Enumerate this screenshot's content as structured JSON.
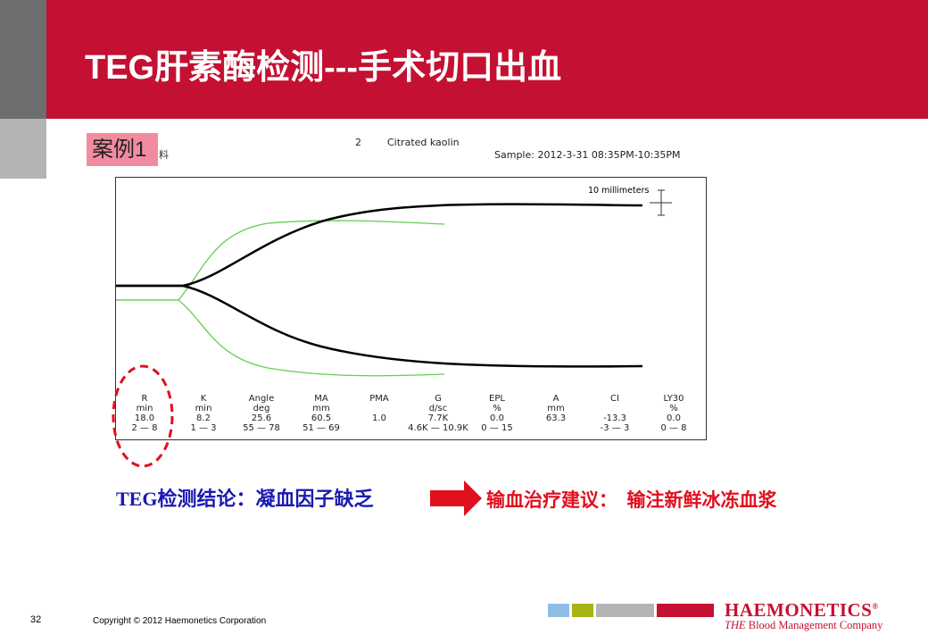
{
  "slide": {
    "title": "TEG肝素酶检测---手术切口出血",
    "case_label": "案例1",
    "case_suffix": "料",
    "page_number": "32",
    "copyright": "Copyright © 2012 Haemonetics Corporation"
  },
  "tracing": {
    "channel": "2",
    "test": "Citrated kaolin",
    "sample": "Sample: 2012-3-31 08:35PM-10:35PM",
    "scale_label": "10 millimeters",
    "params": [
      {
        "name": "R",
        "unit": "min",
        "value": "18.0",
        "range": "2 — 8"
      },
      {
        "name": "K",
        "unit": "min",
        "value": "8.2",
        "range": "1 — 3"
      },
      {
        "name": "Angle",
        "unit": "deg",
        "value": "25.6",
        "range": "55 — 78"
      },
      {
        "name": "MA",
        "unit": "mm",
        "value": "60.5",
        "range": "51 — 69"
      },
      {
        "name": "PMA",
        "unit": "",
        "value": "1.0",
        "range": ""
      },
      {
        "name": "G",
        "unit": "d/sc",
        "value": "7.7K",
        "range": "4.6K — 10.9K"
      },
      {
        "name": "EPL",
        "unit": "%",
        "value": "0.0",
        "range": "0 — 15"
      },
      {
        "name": "A",
        "unit": "mm",
        "value": "63.3",
        "range": ""
      },
      {
        "name": "CI",
        "unit": "",
        "value": "-13.3",
        "range": "-3 — 3"
      },
      {
        "name": "LY30",
        "unit": "%",
        "value": "0.0",
        "range": "0 — 8"
      }
    ],
    "colors": {
      "patient": "#000000",
      "heparinase": "#66cc55",
      "highlight": "#e0101e"
    }
  },
  "conclusion": {
    "text": "TEG检测结论：凝血因子缺乏",
    "advice": "输血治疗建议：  输注新鲜冰冻血浆"
  },
  "logo": {
    "name": "HAEMONETICS",
    "reg": "®",
    "tagline_em": "THE",
    "tagline": " Blood Management Company"
  }
}
